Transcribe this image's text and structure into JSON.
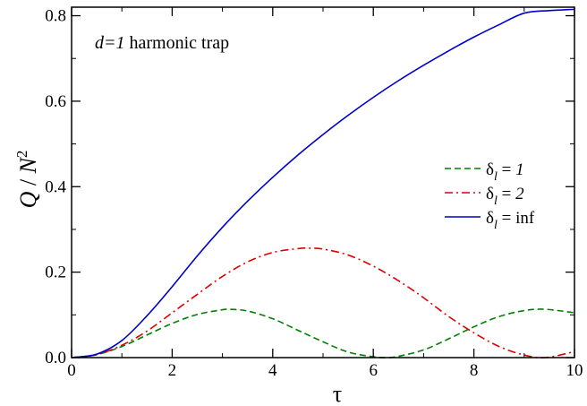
{
  "chart_data": {
    "type": "line",
    "annotation": "d=1 harmonic trap",
    "xlabel": "τ",
    "ylabel": "Q / N²",
    "xlim": [
      0,
      10
    ],
    "ylim": [
      0,
      0.82
    ],
    "xticks": [
      0,
      2,
      4,
      6,
      8,
      10
    ],
    "xtick_labels": [
      "0",
      "2",
      "4",
      "6",
      "8",
      "10"
    ],
    "yticks": [
      0.0,
      0.2,
      0.4,
      0.6,
      0.8
    ],
    "ytick_labels": [
      "0.0",
      "0.2",
      "0.4",
      "0.6",
      "0.8"
    ],
    "grid": false,
    "legend_position": "center-right",
    "series": [
      {
        "name": "δl = 1",
        "label_main": "δ",
        "label_sub": "l",
        "label_rest": " = ",
        "label_value": "1",
        "color": "#008000",
        "style": "dashed",
        "x": [
          0,
          0.5,
          1.0,
          1.5,
          2.0,
          2.5,
          3.0,
          3.14,
          3.5,
          4.0,
          4.5,
          5.0,
          5.5,
          6.0,
          6.28,
          6.5,
          7.0,
          7.5,
          8.0,
          8.5,
          9.0,
          9.42,
          10.0
        ],
        "y": [
          0,
          0.007,
          0.026,
          0.053,
          0.08,
          0.101,
          0.112,
          0.113,
          0.109,
          0.091,
          0.064,
          0.037,
          0.013,
          0.002,
          0.0,
          0.003,
          0.018,
          0.044,
          0.072,
          0.096,
          0.11,
          0.113,
          0.105
        ]
      },
      {
        "name": "δl = 2",
        "label_main": "δ",
        "label_sub": "l",
        "label_rest": " = ",
        "label_value": "2",
        "color": "#e00000",
        "style": "dashdot",
        "x": [
          0,
          0.5,
          1.0,
          1.5,
          2.0,
          2.5,
          3.0,
          3.5,
          4.0,
          4.5,
          4.71,
          5.0,
          5.5,
          6.0,
          6.5,
          7.0,
          7.5,
          8.0,
          8.5,
          9.0,
          9.42,
          10.0
        ],
        "y": [
          0,
          0.007,
          0.029,
          0.062,
          0.105,
          0.148,
          0.19,
          0.224,
          0.246,
          0.255,
          0.256,
          0.254,
          0.24,
          0.214,
          0.18,
          0.14,
          0.096,
          0.058,
          0.026,
          0.006,
          0.0,
          0.014
        ]
      },
      {
        "name": "δl = inf",
        "label_main": "δ",
        "label_sub": "l",
        "label_rest": " = ",
        "label_value": "inf",
        "color": "#0000cc",
        "style": "solid",
        "x": [
          0,
          0.5,
          1.0,
          1.5,
          2.0,
          2.5,
          3.0,
          3.5,
          4.0,
          4.5,
          5.0,
          5.5,
          6.0,
          6.5,
          7.0,
          7.5,
          8.0,
          8.5,
          9.0,
          9.5,
          10.0
        ],
        "y": [
          0,
          0.008,
          0.04,
          0.098,
          0.166,
          0.238,
          0.305,
          0.366,
          0.422,
          0.474,
          0.522,
          0.567,
          0.609,
          0.648,
          0.684,
          0.718,
          0.75,
          0.779,
          0.806,
          0.812,
          0.815
        ]
      }
    ]
  }
}
